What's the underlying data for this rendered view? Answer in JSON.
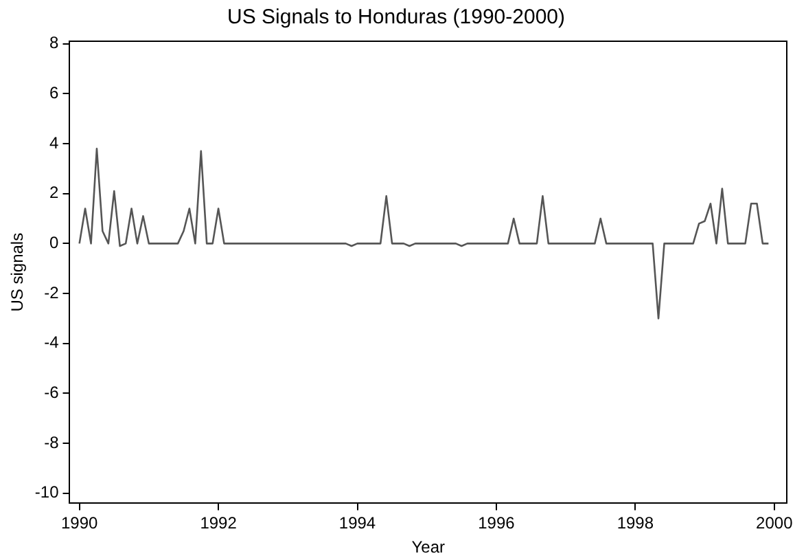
{
  "chart_data": {
    "type": "line",
    "title": "US Signals to Honduras (1990-2000)",
    "xlabel": "Year",
    "ylabel": "US signals",
    "x": [
      1990,
      1990.083,
      1990.167,
      1990.25,
      1990.333,
      1990.417,
      1990.5,
      1990.583,
      1990.667,
      1990.75,
      1990.833,
      1990.917,
      1991,
      1991.417,
      1991.5,
      1991.583,
      1991.667,
      1991.75,
      1991.833,
      1991.917,
      1992,
      1992.083,
      1993.833,
      1993.917,
      1994,
      1994.333,
      1994.417,
      1994.5,
      1994.667,
      1994.75,
      1994.833,
      1995.417,
      1995.5,
      1995.583,
      1996.167,
      1996.25,
      1996.333,
      1996.583,
      1996.667,
      1996.75,
      1997.417,
      1997.5,
      1997.583,
      1998.25,
      1998.333,
      1998.417,
      1998.833,
      1998.917,
      1999,
      1999.083,
      1999.167,
      1999.25,
      1999.333,
      1999.583,
      1999.667,
      1999.75,
      1999.833,
      1999.917
    ],
    "series": [
      {
        "color": "#555555",
        "values": [
          0,
          1.4,
          0,
          3.8,
          0.5,
          0,
          2.1,
          -0.1,
          0,
          1.4,
          0,
          1.1,
          0,
          0,
          0.5,
          1.4,
          0,
          3.7,
          0,
          0,
          1.4,
          0,
          0,
          -0.1,
          0,
          0,
          1.9,
          0,
          0,
          -0.1,
          0,
          0,
          -0.1,
          0,
          0,
          1.0,
          0,
          0,
          1.9,
          0,
          0,
          1.0,
          0,
          0,
          -3.0,
          0,
          0,
          0.8,
          0.9,
          1.6,
          0,
          2.2,
          0,
          0,
          1.6,
          1.6,
          0,
          0
        ]
      }
    ],
    "xlim": [
      1989.86,
      2000.18
    ],
    "ylim": [
      -10.4,
      8.1
    ],
    "xticks": [
      1990,
      1992,
      1994,
      1996,
      1998,
      2000
    ],
    "yticks": [
      -10,
      -8,
      -6,
      -4,
      -2,
      0,
      2,
      4,
      6,
      8
    ],
    "grid": false,
    "legend": false,
    "marker": "none",
    "line_style": "solid"
  }
}
